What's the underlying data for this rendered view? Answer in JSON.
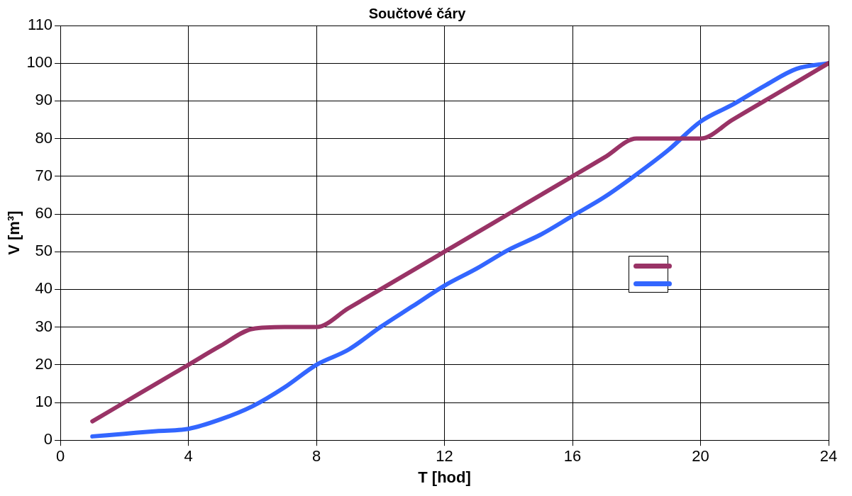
{
  "chart_data": {
    "type": "line",
    "title": "Součtové čáry",
    "xlabel": "T [hod]",
    "ylabel": "V [m³]",
    "x": [
      1,
      2,
      3,
      4,
      5,
      6,
      7,
      8,
      9,
      10,
      11,
      12,
      13,
      14,
      15,
      16,
      17,
      18,
      19,
      20,
      21,
      22,
      23,
      24
    ],
    "series": [
      {
        "color": "#993366",
        "values": [
          5,
          10,
          15,
          20,
          25,
          29.5,
          30,
          30,
          35,
          40,
          45,
          50,
          55,
          60,
          65,
          70,
          75,
          80,
          80,
          80,
          85,
          90,
          95,
          100
        ]
      },
      {
        "color": "#3366ff",
        "values": [
          1,
          1.7,
          2.4,
          3,
          5.5,
          9,
          14,
          20,
          24,
          30,
          35.5,
          41,
          45.5,
          50.5,
          54.5,
          59.5,
          64.5,
          70.5,
          77,
          84.5,
          89,
          94,
          98.5,
          100
        ]
      }
    ],
    "xlim": [
      0,
      24
    ],
    "xticks": [
      0,
      4,
      8,
      12,
      16,
      20,
      24
    ],
    "ylim": [
      0,
      110
    ],
    "yticks": [
      0,
      10,
      20,
      30,
      40,
      50,
      60,
      70,
      80,
      90,
      100,
      110
    ],
    "grid": true,
    "marker": "none",
    "line_style": "solid"
  }
}
